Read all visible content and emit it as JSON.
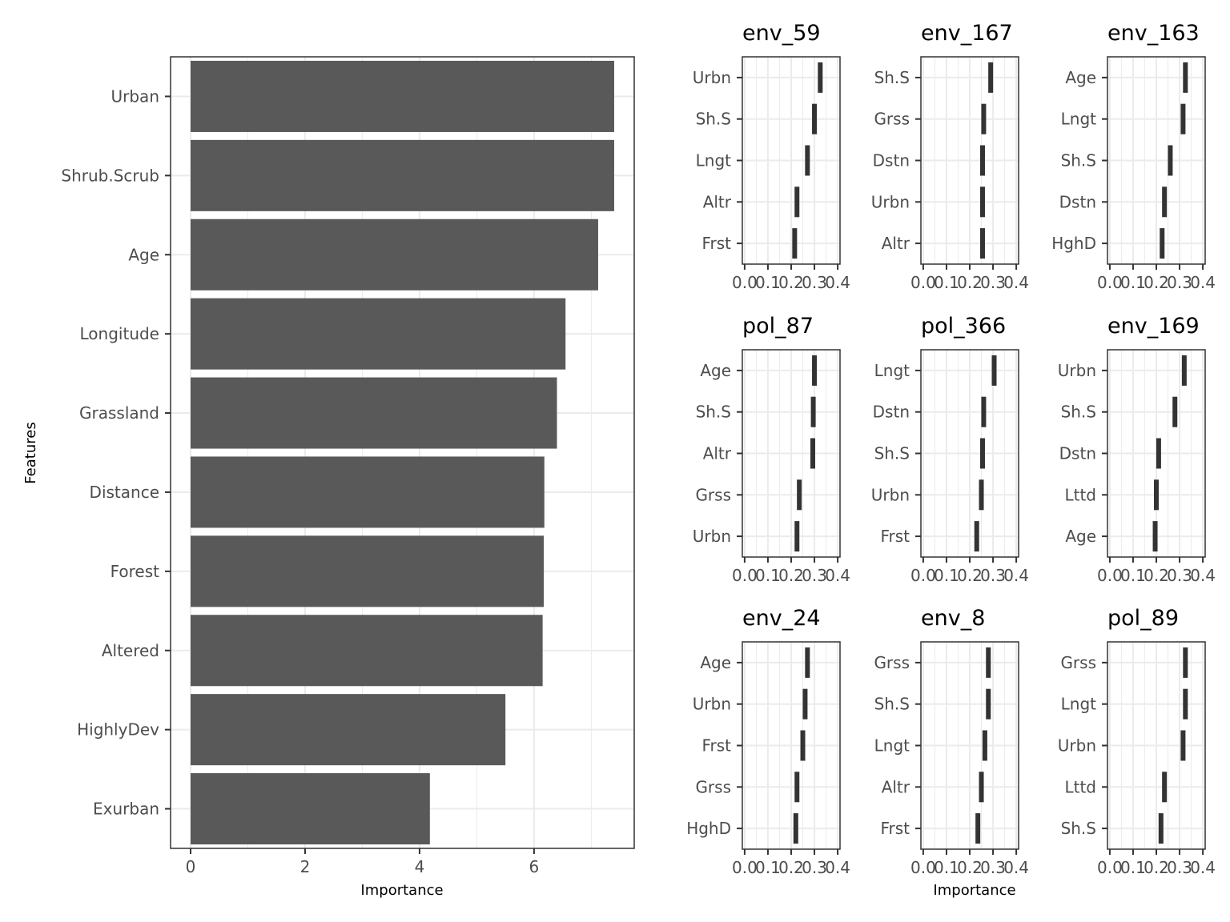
{
  "chart_data": [
    {
      "type": "bar",
      "orientation": "horizontal",
      "ylabel": "Features",
      "xlabel": "Importance",
      "categories": [
        "Urban",
        "Shrub.Scrub",
        "Age",
        "Longitude",
        "Grassland",
        "Distance",
        "Forest",
        "Altered",
        "HighlyDev",
        "Exurban"
      ],
      "values": [
        7.4,
        7.4,
        7.12,
        6.55,
        6.4,
        6.18,
        6.17,
        6.15,
        5.5,
        4.18
      ],
      "xlim": [
        -0.35,
        7.75
      ],
      "xticks": [
        0,
        2,
        4,
        6
      ],
      "grid": true,
      "bar_color": "#595959"
    },
    {
      "type": "bar",
      "title": "env_59",
      "categories": [
        "Urbn",
        "Sh.S",
        "Lngt",
        "Altr",
        "Frst"
      ],
      "values": [
        0.325,
        0.3,
        0.27,
        0.225,
        0.215
      ],
      "xlim": [
        -0.01,
        0.41
      ],
      "xticks": [
        0.0,
        0.1,
        0.2,
        0.3,
        0.4
      ],
      "xtick_labels": [
        "0.0",
        "0.1",
        "0.2",
        "0.3",
        "0.4"
      ],
      "grid": true
    },
    {
      "type": "bar",
      "title": "env_167",
      "categories": [
        "Sh.S",
        "Grss",
        "Dstn",
        "Urbn",
        "Altr"
      ],
      "values": [
        0.29,
        0.26,
        0.255,
        0.255,
        0.255
      ],
      "xlim": [
        -0.01,
        0.41
      ],
      "xticks": [
        0.0,
        0.1,
        0.2,
        0.3,
        0.4
      ],
      "xtick_labels": [
        "0.0",
        "0.1",
        "0.2",
        "0.3",
        "0.4"
      ],
      "grid": true
    },
    {
      "type": "bar",
      "title": "env_163",
      "categories": [
        "Age",
        "Lngt",
        "Sh.S",
        "Dstn",
        "HghD"
      ],
      "values": [
        0.325,
        0.315,
        0.26,
        0.235,
        0.225
      ],
      "xlim": [
        -0.01,
        0.41
      ],
      "xticks": [
        0.0,
        0.1,
        0.2,
        0.3,
        0.4
      ],
      "xtick_labels": [
        "0.0",
        "0.1",
        "0.2",
        "0.3",
        "0.4"
      ],
      "grid": true
    },
    {
      "type": "bar",
      "title": "pol_87",
      "categories": [
        "Age",
        "Sh.S",
        "Altr",
        "Grss",
        "Urbn"
      ],
      "values": [
        0.3,
        0.295,
        0.293,
        0.235,
        0.225
      ],
      "xlim": [
        -0.01,
        0.41
      ],
      "xticks": [
        0.0,
        0.1,
        0.2,
        0.3,
        0.4
      ],
      "xtick_labels": [
        "0.0",
        "0.1",
        "0.2",
        "0.3",
        "0.4"
      ],
      "grid": true
    },
    {
      "type": "bar",
      "title": "pol_366",
      "categories": [
        "Lngt",
        "Dstn",
        "Sh.S",
        "Urbn",
        "Frst"
      ],
      "values": [
        0.305,
        0.26,
        0.255,
        0.25,
        0.23
      ],
      "xlim": [
        -0.01,
        0.41
      ],
      "xticks": [
        0.0,
        0.1,
        0.2,
        0.3,
        0.4
      ],
      "xtick_labels": [
        "0.0",
        "0.1",
        "0.2",
        "0.3",
        "0.4"
      ],
      "grid": true
    },
    {
      "type": "bar",
      "title": "env_169",
      "categories": [
        "Urbn",
        "Sh.S",
        "Dstn",
        "Lttd",
        "Age"
      ],
      "values": [
        0.32,
        0.28,
        0.21,
        0.2,
        0.195
      ],
      "xlim": [
        -0.01,
        0.41
      ],
      "xticks": [
        0.0,
        0.1,
        0.2,
        0.3,
        0.4
      ],
      "xtick_labels": [
        "0.0",
        "0.1",
        "0.2",
        "0.3",
        "0.4"
      ],
      "grid": true
    },
    {
      "type": "bar",
      "title": "env_24",
      "categories": [
        "Age",
        "Urbn",
        "Frst",
        "Grss",
        "HghD"
      ],
      "values": [
        0.27,
        0.26,
        0.25,
        0.225,
        0.22
      ],
      "xlim": [
        -0.01,
        0.41
      ],
      "xticks": [
        0.0,
        0.1,
        0.2,
        0.3,
        0.4
      ],
      "xtick_labels": [
        "0.0",
        "0.1",
        "0.2",
        "0.3",
        "0.4"
      ],
      "grid": true
    },
    {
      "type": "bar",
      "title": "env_8",
      "categories": [
        "Grss",
        "Sh.S",
        "Lngt",
        "Altr",
        "Frst"
      ],
      "values": [
        0.28,
        0.28,
        0.265,
        0.25,
        0.235
      ],
      "xlim": [
        -0.01,
        0.41
      ],
      "xticks": [
        0.0,
        0.1,
        0.2,
        0.3,
        0.4
      ],
      "xtick_labels": [
        "0.0",
        "0.1",
        "0.2",
        "0.3",
        "0.4"
      ],
      "grid": true
    },
    {
      "type": "bar",
      "title": "pol_89",
      "categories": [
        "Grss",
        "Lngt",
        "Urbn",
        "Lttd",
        "Sh.S"
      ],
      "values": [
        0.325,
        0.325,
        0.315,
        0.235,
        0.22
      ],
      "xlim": [
        -0.01,
        0.41
      ],
      "xticks": [
        0.0,
        0.1,
        0.2,
        0.3,
        0.4
      ],
      "xtick_labels": [
        "0.0",
        "0.1",
        "0.2",
        "0.3",
        "0.4"
      ],
      "grid": true
    }
  ],
  "small_multiples": {
    "xlabel": "Importance"
  },
  "colors": {
    "main_bar": "#595959",
    "facet_bar": "#333333",
    "grid": "#ebebeb",
    "panel_border": "#333333",
    "tick_text": "#4d4d4d"
  }
}
